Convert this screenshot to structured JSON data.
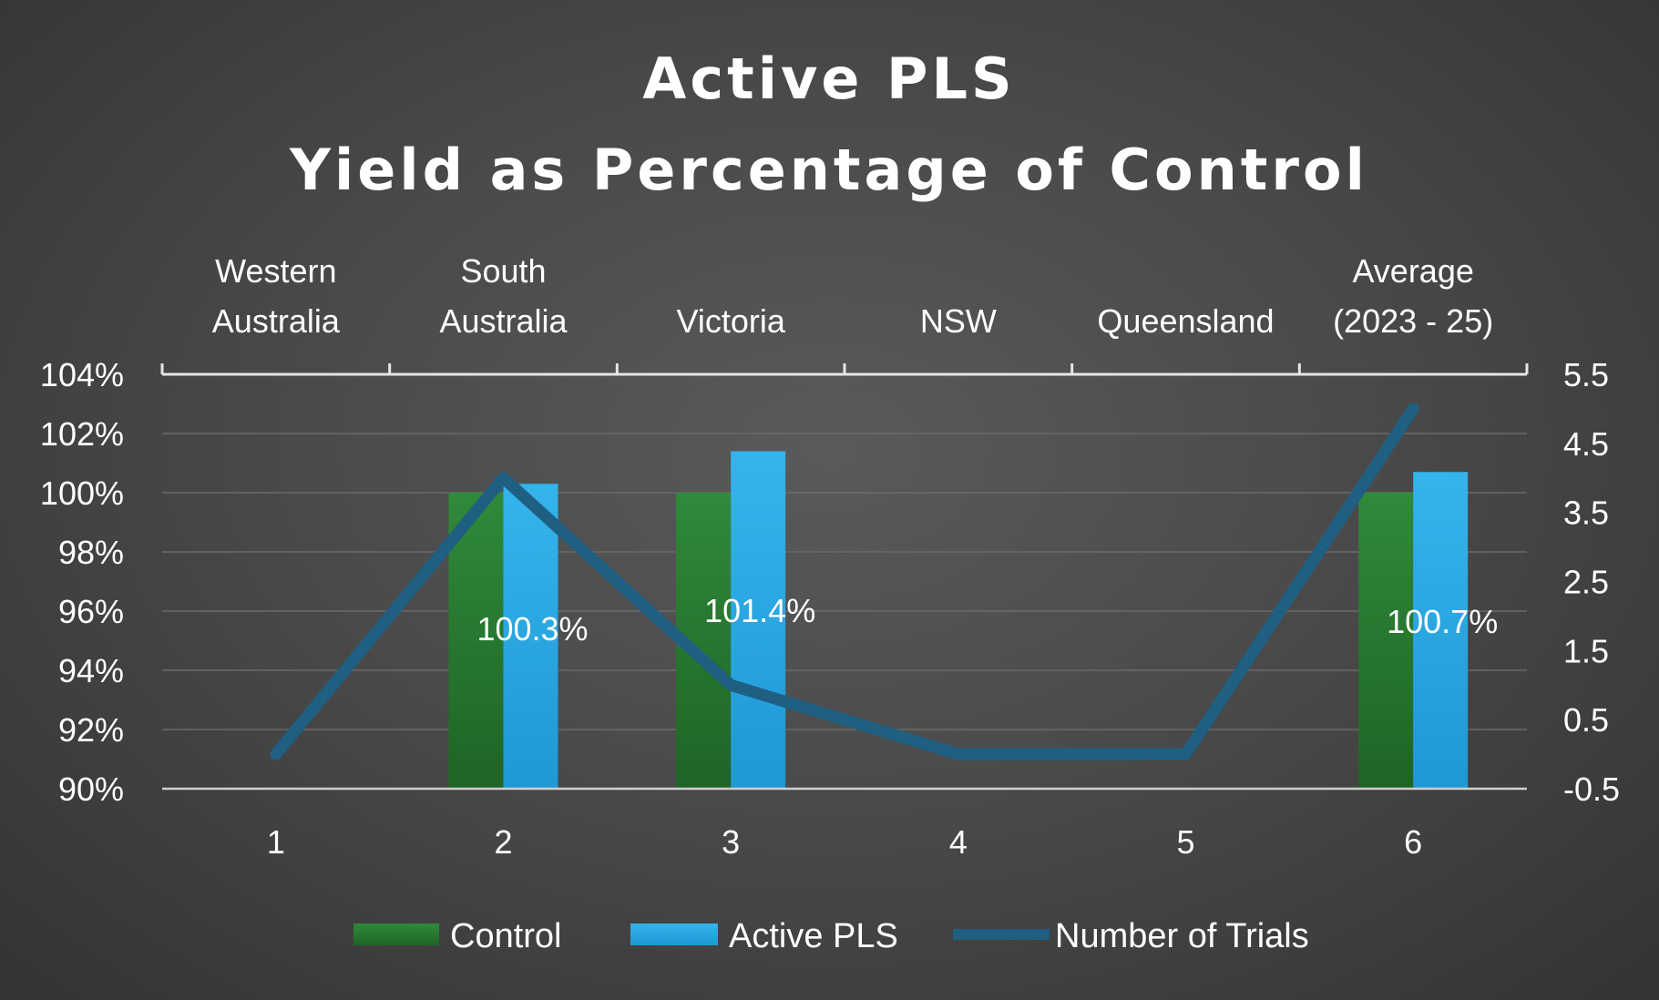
{
  "chart_data": {
    "type": "bar",
    "title": [
      "Active PLS",
      "Yield as Percentage of Control"
    ],
    "x": [
      1,
      2,
      3,
      4,
      5,
      6
    ],
    "categories": [
      [
        "Western",
        "Australia"
      ],
      [
        "South",
        "Australia"
      ],
      [
        "Victoria"
      ],
      [
        "NSW"
      ],
      [
        "Queensland"
      ],
      [
        "Average",
        "(2023 - 25)"
      ]
    ],
    "y_left": {
      "ylim": [
        90,
        104
      ],
      "ticks": [
        104,
        102,
        100,
        98,
        96,
        94,
        92,
        90
      ],
      "tick_labels": [
        "104%",
        "102%",
        "100%",
        "98%",
        "96%",
        "94%",
        "92%",
        "90%"
      ]
    },
    "y_right": {
      "ylim": [
        -0.5,
        5.5
      ],
      "ticks": [
        5.5,
        4.5,
        3.5,
        2.5,
        1.5,
        0.5,
        -0.5
      ],
      "tick_labels": [
        "5.5",
        "4.5",
        "3.5",
        "2.5",
        "1.5",
        "0.5",
        "-0.5"
      ]
    },
    "series": [
      {
        "name": "Control",
        "kind": "bar",
        "axis": "left",
        "color": "#2e7d32",
        "values": [
          null,
          100,
          100,
          null,
          null,
          100
        ]
      },
      {
        "name": "Active PLS",
        "kind": "bar",
        "axis": "left",
        "color": "#29a8e0",
        "values": [
          null,
          100.3,
          101.4,
          null,
          null,
          100.7
        ],
        "data_labels": [
          null,
          "100.3%",
          "101.4%",
          null,
          null,
          "100.7%"
        ]
      },
      {
        "name": "Number of Trials",
        "kind": "line",
        "axis": "right",
        "color": "#1f5f82",
        "values": [
          0,
          4,
          1,
          0,
          0,
          5
        ]
      }
    ],
    "grid": true,
    "legend": "bottom"
  }
}
